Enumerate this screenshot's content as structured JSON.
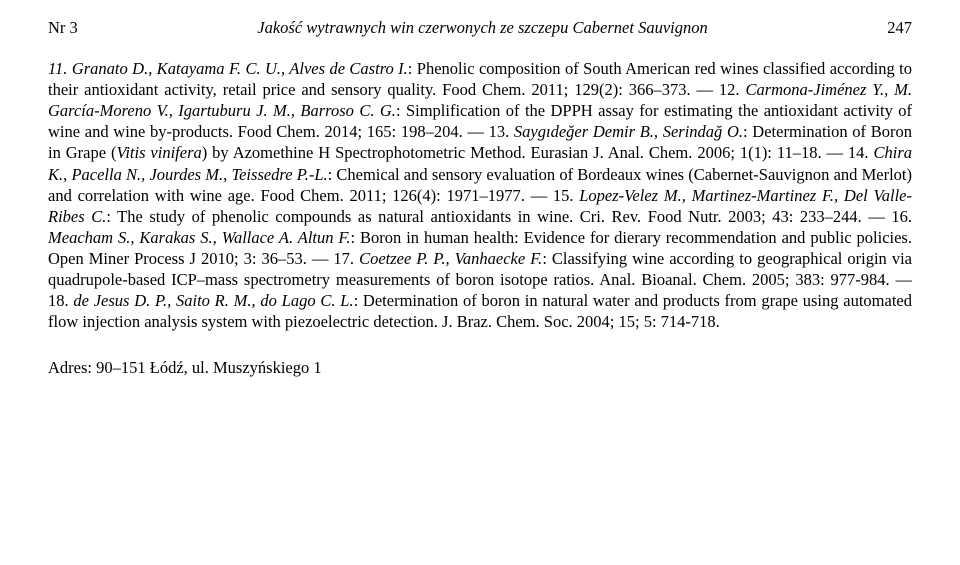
{
  "header": {
    "issue": "Nr 3",
    "title": "Jakość wytrawnych win czerwonych ze szczepu Cabernet Sauvignon",
    "page": "247"
  },
  "refs": {
    "r11_authors": "11. Granato D., Katayama F. C. U., Alves de Castro I.",
    "r11_rest": ": Phenolic composition of South American red wines classified according to their antioxidant activity, retail price and sensory quality. Food Chem. 2011; 129(2): 366–373. — 12. ",
    "r12_authors": "Carmona-Jiménez Y., M. García-Moreno V., Igartuburu J. M., Barroso C. G.",
    "r12_rest": ": Simplification of the DPPH assay for estimating the antioxidant activity of wine and wine by-products. Food Chem. 2014; 165: 198–204. — 13. ",
    "r13_authors": "Saygıdeğer Demir B., Serindağ O.",
    "r13_rest_a": ": Determination of Boron in Grape (",
    "r13_ital": "Vitis vinifera",
    "r13_rest_b": ") by Azomethine H Spectrophotometric Method. Eurasian J. Anal. Chem. 2006; 1(1): 11–18. — 14. ",
    "r14_authors": "Chira K., Pacella N., Jourdes M., Teissedre P.-L.",
    "r14_rest": ": Chemical and sensory evaluation of Bordeaux wines (Cabernet-Sauvignon and Merlot) and correlation with wine age. Food Chem. 2011; 126(4): 1971–1977. — 15. ",
    "r15_authors": "Lopez-Velez M., Martinez-Martinez F., Del Valle-Ribes C.",
    "r15_rest": ": The study of phenolic compounds as natural antioxidants in wine. Cri. Rev. Food Nutr. 2003; 43: 233–244. — 16. ",
    "r16_authors": "Meacham S., Karakas S., Wallace A. Altun F.",
    "r16_rest": ": Boron in human health: Evidence for dierary recommendation and public policies. Open Miner Process J 2010; 3: 36–53. — 17. ",
    "r17_authors": "Coetzee P. P., Vanhaecke F.",
    "r17_rest": ": Classifying wine according to geographical origin via quadrupole-based ICP–mass spectrometry measurements of boron isotope ratios. Anal. Bioanal. Chem. 2005; 383: 977-984. — 18. ",
    "r18_authors": "de Jesus D. P., Saito R. M., do Lago C. L.",
    "r18_rest": ": Determination of boron in natural water and products from grape using automated flow injection analysis system with piezoelectric detection. J. Braz. Chem. Soc. 2004; 15; 5: 714-718."
  },
  "address": "Adres: 90–151 Łódź, ul. Muszyńskiego 1"
}
